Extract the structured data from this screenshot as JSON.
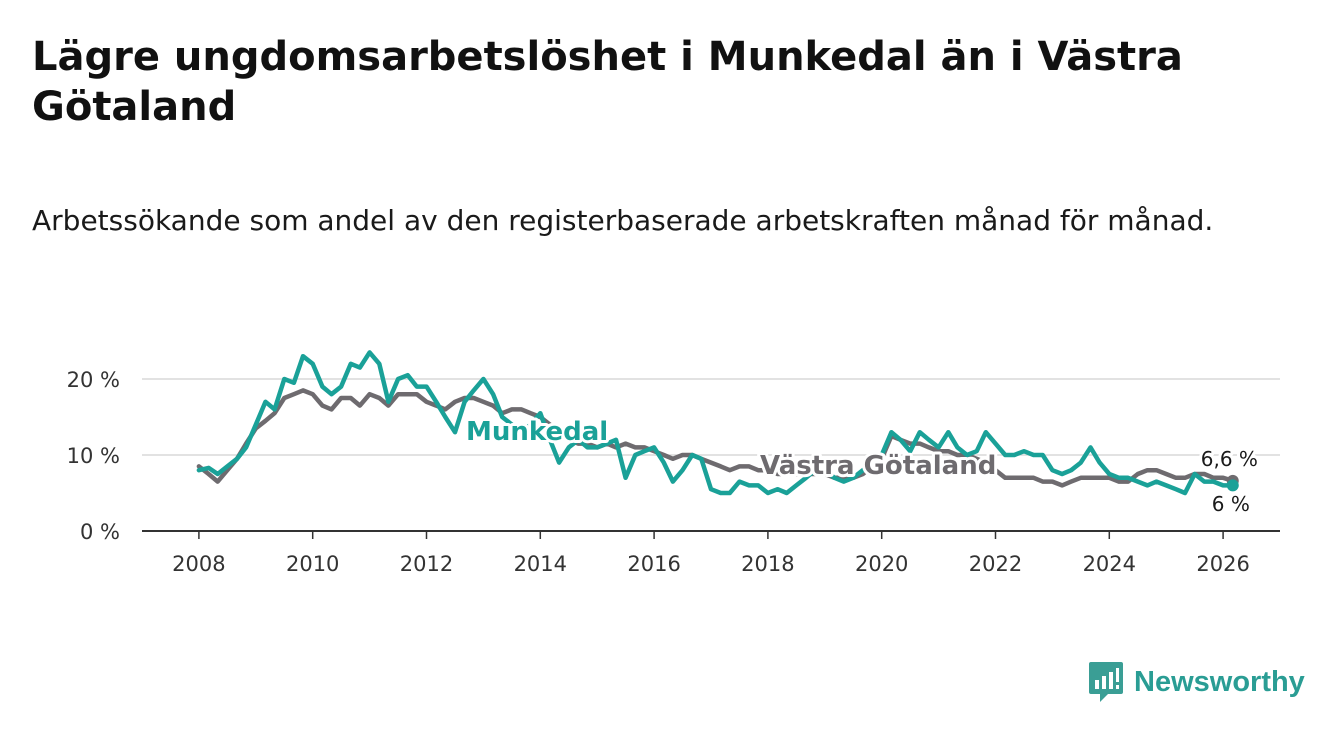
{
  "title": "Lägre ungdomsarbetslöshet i Munkedal än i Västra Götaland",
  "subtitle": "Arbetssökande som andel av den registerbaserade arbetskraften månad för månad.",
  "brand": {
    "name": "Newsworthy",
    "icon": "newsworthy-logo-icon"
  },
  "colors": {
    "munkedal": "#1aa198",
    "vg": "#6e6b6f",
    "grid": "#d9d9d9",
    "axis": "#333333"
  },
  "chart_data": {
    "type": "line",
    "title": "Lägre ungdomsarbetslöshet i Munkedal än i Västra Götaland",
    "xlabel": "",
    "ylabel": "",
    "xlim": [
      2007.0,
      2027.0
    ],
    "ylim": [
      0,
      20
    ],
    "yticks": [
      0,
      10,
      20
    ],
    "ytick_labels": [
      "0 %",
      "10 %",
      "20 %"
    ],
    "xticks": [
      2008,
      2010,
      2012,
      2014,
      2016,
      2018,
      2020,
      2022,
      2024,
      2026
    ],
    "xtick_labels": [
      "2008",
      "2010",
      "2012",
      "2014",
      "2016",
      "2018",
      "2020",
      "2022",
      "2024",
      "2026"
    ],
    "series": [
      {
        "name": "Munkedal",
        "label": "Munkedal",
        "end_label": "6 %",
        "x": [
          2008.0,
          2008.17,
          2008.33,
          2008.5,
          2008.67,
          2008.83,
          2009.0,
          2009.17,
          2009.33,
          2009.5,
          2009.67,
          2009.83,
          2010.0,
          2010.17,
          2010.33,
          2010.5,
          2010.67,
          2010.83,
          2011.0,
          2011.17,
          2011.33,
          2011.5,
          2011.67,
          2011.83,
          2012.0,
          2012.17,
          2012.33,
          2012.5,
          2012.67,
          2012.83,
          2013.0,
          2013.17,
          2013.33,
          2013.5,
          2013.67,
          2013.83,
          2014.0,
          2014.17,
          2014.33,
          2014.5,
          2014.67,
          2014.83,
          2015.0,
          2015.17,
          2015.33,
          2015.5,
          2015.67,
          2015.83,
          2016.0,
          2016.17,
          2016.33,
          2016.5,
          2016.67,
          2016.83,
          2017.0,
          2017.17,
          2017.33,
          2017.5,
          2017.67,
          2017.83,
          2018.0,
          2018.17,
          2018.33,
          2018.5,
          2018.67,
          2018.83,
          2019.0,
          2019.17,
          2019.33,
          2019.5,
          2019.67,
          2019.83,
          2020.0,
          2020.17,
          2020.33,
          2020.5,
          2020.67,
          2020.83,
          2021.0,
          2021.17,
          2021.33,
          2021.5,
          2021.67,
          2021.83,
          2022.0,
          2022.17,
          2022.33,
          2022.5,
          2022.67,
          2022.83,
          2023.0,
          2023.17,
          2023.33,
          2023.5,
          2023.67,
          2023.83,
          2024.0,
          2024.17,
          2024.33,
          2024.5,
          2024.67,
          2024.83,
          2025.0,
          2025.17,
          2025.33,
          2025.5,
          2025.67,
          2025.83,
          2026.0,
          2026.17
        ],
        "values": [
          8.0,
          8.3,
          7.5,
          8.5,
          9.5,
          11.0,
          14.0,
          17.0,
          16.0,
          20.0,
          19.5,
          23.0,
          22.0,
          19.0,
          18.0,
          19.0,
          22.0,
          21.5,
          23.5,
          22.0,
          17.0,
          20.0,
          20.5,
          19.0,
          19.0,
          17.0,
          15.0,
          13.0,
          17.0,
          18.5,
          20.0,
          18.0,
          15.0,
          14.0,
          13.0,
          14.0,
          15.5,
          12.0,
          9.0,
          11.0,
          12.0,
          11.0,
          11.0,
          11.5,
          12.0,
          7.0,
          10.0,
          10.5,
          11.0,
          9.0,
          6.5,
          8.0,
          10.0,
          9.5,
          5.5,
          5.0,
          5.0,
          6.5,
          6.0,
          6.0,
          5.0,
          5.5,
          5.0,
          6.0,
          7.0,
          8.0,
          8.0,
          7.0,
          6.5,
          7.0,
          8.0,
          9.0,
          10.0,
          13.0,
          12.0,
          10.5,
          13.0,
          12.0,
          11.0,
          13.0,
          11.0,
          10.0,
          10.5,
          13.0,
          11.5,
          10.0,
          10.0,
          10.5,
          10.0,
          10.0,
          8.0,
          7.5,
          8.0,
          9.0,
          11.0,
          9.0,
          7.5,
          7.0,
          7.0,
          6.5,
          6.0,
          6.5,
          6.0,
          5.5,
          5.0,
          7.5,
          6.5,
          6.5,
          6.0,
          6.0
        ]
      },
      {
        "name": "Västra Götaland",
        "label": "Västra Götaland",
        "end_label": "6,6 %",
        "x": [
          2008.0,
          2008.17,
          2008.33,
          2008.5,
          2008.67,
          2008.83,
          2009.0,
          2009.17,
          2009.33,
          2009.5,
          2009.67,
          2009.83,
          2010.0,
          2010.17,
          2010.33,
          2010.5,
          2010.67,
          2010.83,
          2011.0,
          2011.17,
          2011.33,
          2011.5,
          2011.67,
          2011.83,
          2012.0,
          2012.17,
          2012.33,
          2012.5,
          2012.67,
          2012.83,
          2013.0,
          2013.17,
          2013.33,
          2013.5,
          2013.67,
          2013.83,
          2014.0,
          2014.17,
          2014.33,
          2014.5,
          2014.67,
          2014.83,
          2015.0,
          2015.17,
          2015.33,
          2015.5,
          2015.67,
          2015.83,
          2016.0,
          2016.17,
          2016.33,
          2016.5,
          2016.67,
          2016.83,
          2017.0,
          2017.17,
          2017.33,
          2017.5,
          2017.67,
          2017.83,
          2018.0,
          2018.17,
          2018.33,
          2018.5,
          2018.67,
          2018.83,
          2019.0,
          2019.17,
          2019.33,
          2019.5,
          2019.67,
          2019.83,
          2020.0,
          2020.17,
          2020.33,
          2020.5,
          2020.67,
          2020.83,
          2021.0,
          2021.17,
          2021.33,
          2021.5,
          2021.67,
          2021.83,
          2022.0,
          2022.17,
          2022.33,
          2022.5,
          2022.67,
          2022.83,
          2023.0,
          2023.17,
          2023.33,
          2023.5,
          2023.67,
          2023.83,
          2024.0,
          2024.17,
          2024.33,
          2024.5,
          2024.67,
          2024.83,
          2025.0,
          2025.17,
          2025.33,
          2025.5,
          2025.67,
          2025.83,
          2026.0,
          2026.17
        ],
        "values": [
          8.5,
          7.5,
          6.5,
          8.0,
          9.5,
          11.5,
          13.5,
          14.5,
          15.5,
          17.5,
          18.0,
          18.5,
          18.0,
          16.5,
          16.0,
          17.5,
          17.5,
          16.5,
          18.0,
          17.5,
          16.5,
          18.0,
          18.0,
          18.0,
          17.0,
          16.5,
          16.0,
          17.0,
          17.5,
          17.5,
          17.0,
          16.5,
          15.5,
          16.0,
          16.0,
          15.5,
          15.0,
          14.0,
          12.5,
          12.0,
          11.5,
          11.5,
          11.0,
          11.5,
          11.0,
          11.5,
          11.0,
          11.0,
          10.5,
          10.0,
          9.5,
          10.0,
          10.0,
          9.5,
          9.0,
          8.5,
          8.0,
          8.5,
          8.5,
          8.0,
          8.0,
          7.5,
          7.5,
          7.5,
          7.5,
          7.5,
          7.5,
          7.0,
          7.0,
          7.0,
          7.5,
          8.5,
          9.5,
          12.5,
          12.0,
          11.5,
          11.5,
          11.0,
          10.5,
          10.5,
          10.0,
          10.0,
          9.5,
          9.0,
          8.0,
          7.0,
          7.0,
          7.0,
          7.0,
          6.5,
          6.5,
          6.0,
          6.5,
          7.0,
          7.0,
          7.0,
          7.0,
          6.5,
          6.5,
          7.5,
          8.0,
          8.0,
          7.5,
          7.0,
          7.0,
          7.5,
          7.5,
          7.0,
          7.0,
          6.6
        ]
      }
    ]
  }
}
